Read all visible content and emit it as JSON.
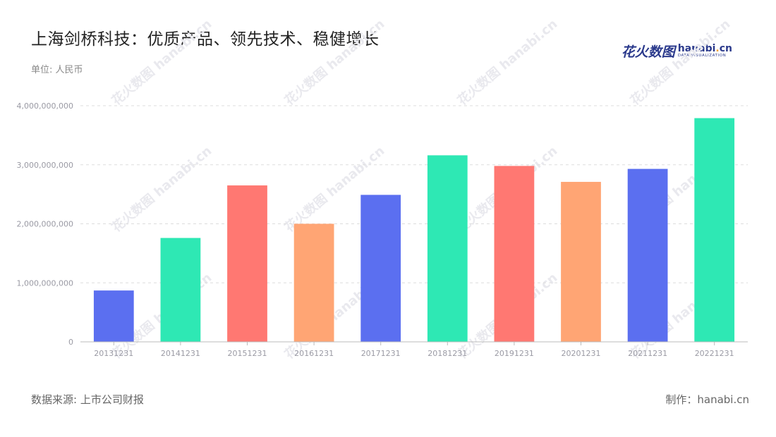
{
  "header": {
    "title": "上海剑桥科技：优质产品、领先技术、稳健增长",
    "unit": "单位: 人民币"
  },
  "logo": {
    "cn": "花火数图",
    "en_prefix": "hanabi",
    "en_dot": ".",
    "en_suffix": "cn",
    "sub": "DATA VISUALIZATION"
  },
  "watermark": "花火数图 hanabi.cn",
  "footer": {
    "source": "数据来源: 上市公司财报",
    "credit": "制作：hanabi.cn"
  },
  "colors": {
    "blue": "#5b6ff0",
    "green": "#2ee8b4",
    "red": "#ff7872",
    "orange": "#ffa574",
    "grid": "#dddddd",
    "axis": "#bbbbbb"
  },
  "chart_data": {
    "type": "bar",
    "categories": [
      "20131231",
      "20141231",
      "20151231",
      "20161231",
      "20171231",
      "20181231",
      "20191231",
      "20201231",
      "20211231",
      "20221231"
    ],
    "values": [
      870000000,
      1760000000,
      2650000000,
      2000000000,
      2490000000,
      3160000000,
      2980000000,
      2710000000,
      2930000000,
      3790000000
    ],
    "bar_colors": [
      "blue",
      "green",
      "red",
      "orange",
      "blue",
      "green",
      "red",
      "orange",
      "blue",
      "green"
    ],
    "yticks": [
      "0",
      "1,000,000,000",
      "2,000,000,000",
      "3,000,000,000",
      "4,000,000,000"
    ],
    "ylim": [
      0,
      4000000000
    ],
    "grid": true,
    "grid_style": "dashed",
    "legend": "none"
  }
}
